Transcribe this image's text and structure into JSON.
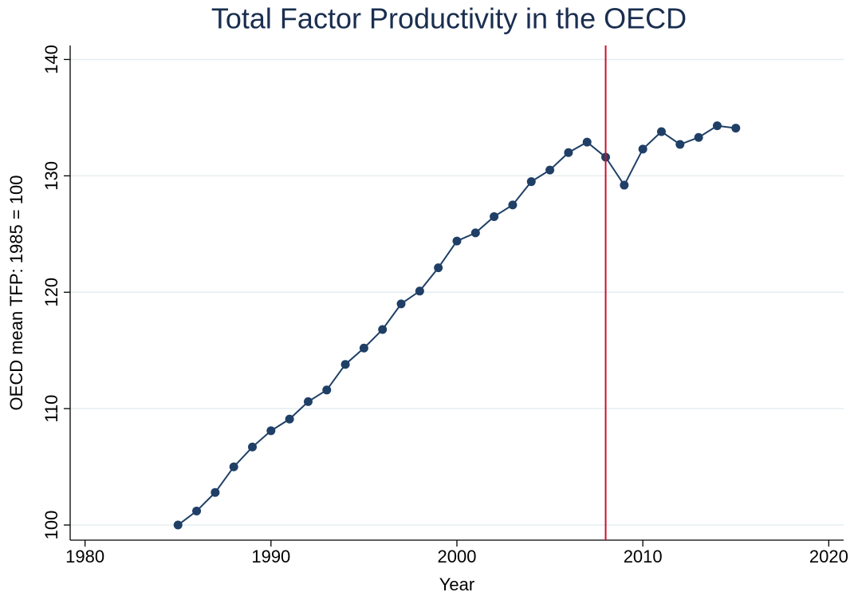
{
  "chart_data": {
    "type": "line",
    "title": "Total Factor Productivity in the OECD",
    "x_label": "Year",
    "y_label": "OECD mean TFP: 1985 = 100",
    "x": [
      1985,
      1986,
      1987,
      1988,
      1989,
      1990,
      1991,
      1992,
      1993,
      1994,
      1995,
      1996,
      1997,
      1998,
      1999,
      2000,
      2001,
      2002,
      2003,
      2004,
      2005,
      2006,
      2007,
      2008,
      2009,
      2010,
      2011,
      2012,
      2013,
      2014,
      2015
    ],
    "values": [
      100,
      101.2,
      102.8,
      105.0,
      106.7,
      108.1,
      109.1,
      110.6,
      111.6,
      113.8,
      115.2,
      116.8,
      119.0,
      120.1,
      122.1,
      124.4,
      125.1,
      126.5,
      127.5,
      129.5,
      130.5,
      132.0,
      132.9,
      131.6,
      129.2,
      132.3,
      133.8,
      132.7,
      133.3,
      134.3,
      134.1
    ],
    "color": "#1f3f66",
    "vline": 2008,
    "vline_color": "#c8102e",
    "xlim": [
      1979.2,
      2020.8
    ],
    "xticks": [
      1980,
      1990,
      2000,
      2010,
      2020
    ],
    "ylim": [
      98.7,
      141.2
    ],
    "yticks": [
      100,
      110,
      120,
      130,
      140
    ],
    "grid": true
  }
}
